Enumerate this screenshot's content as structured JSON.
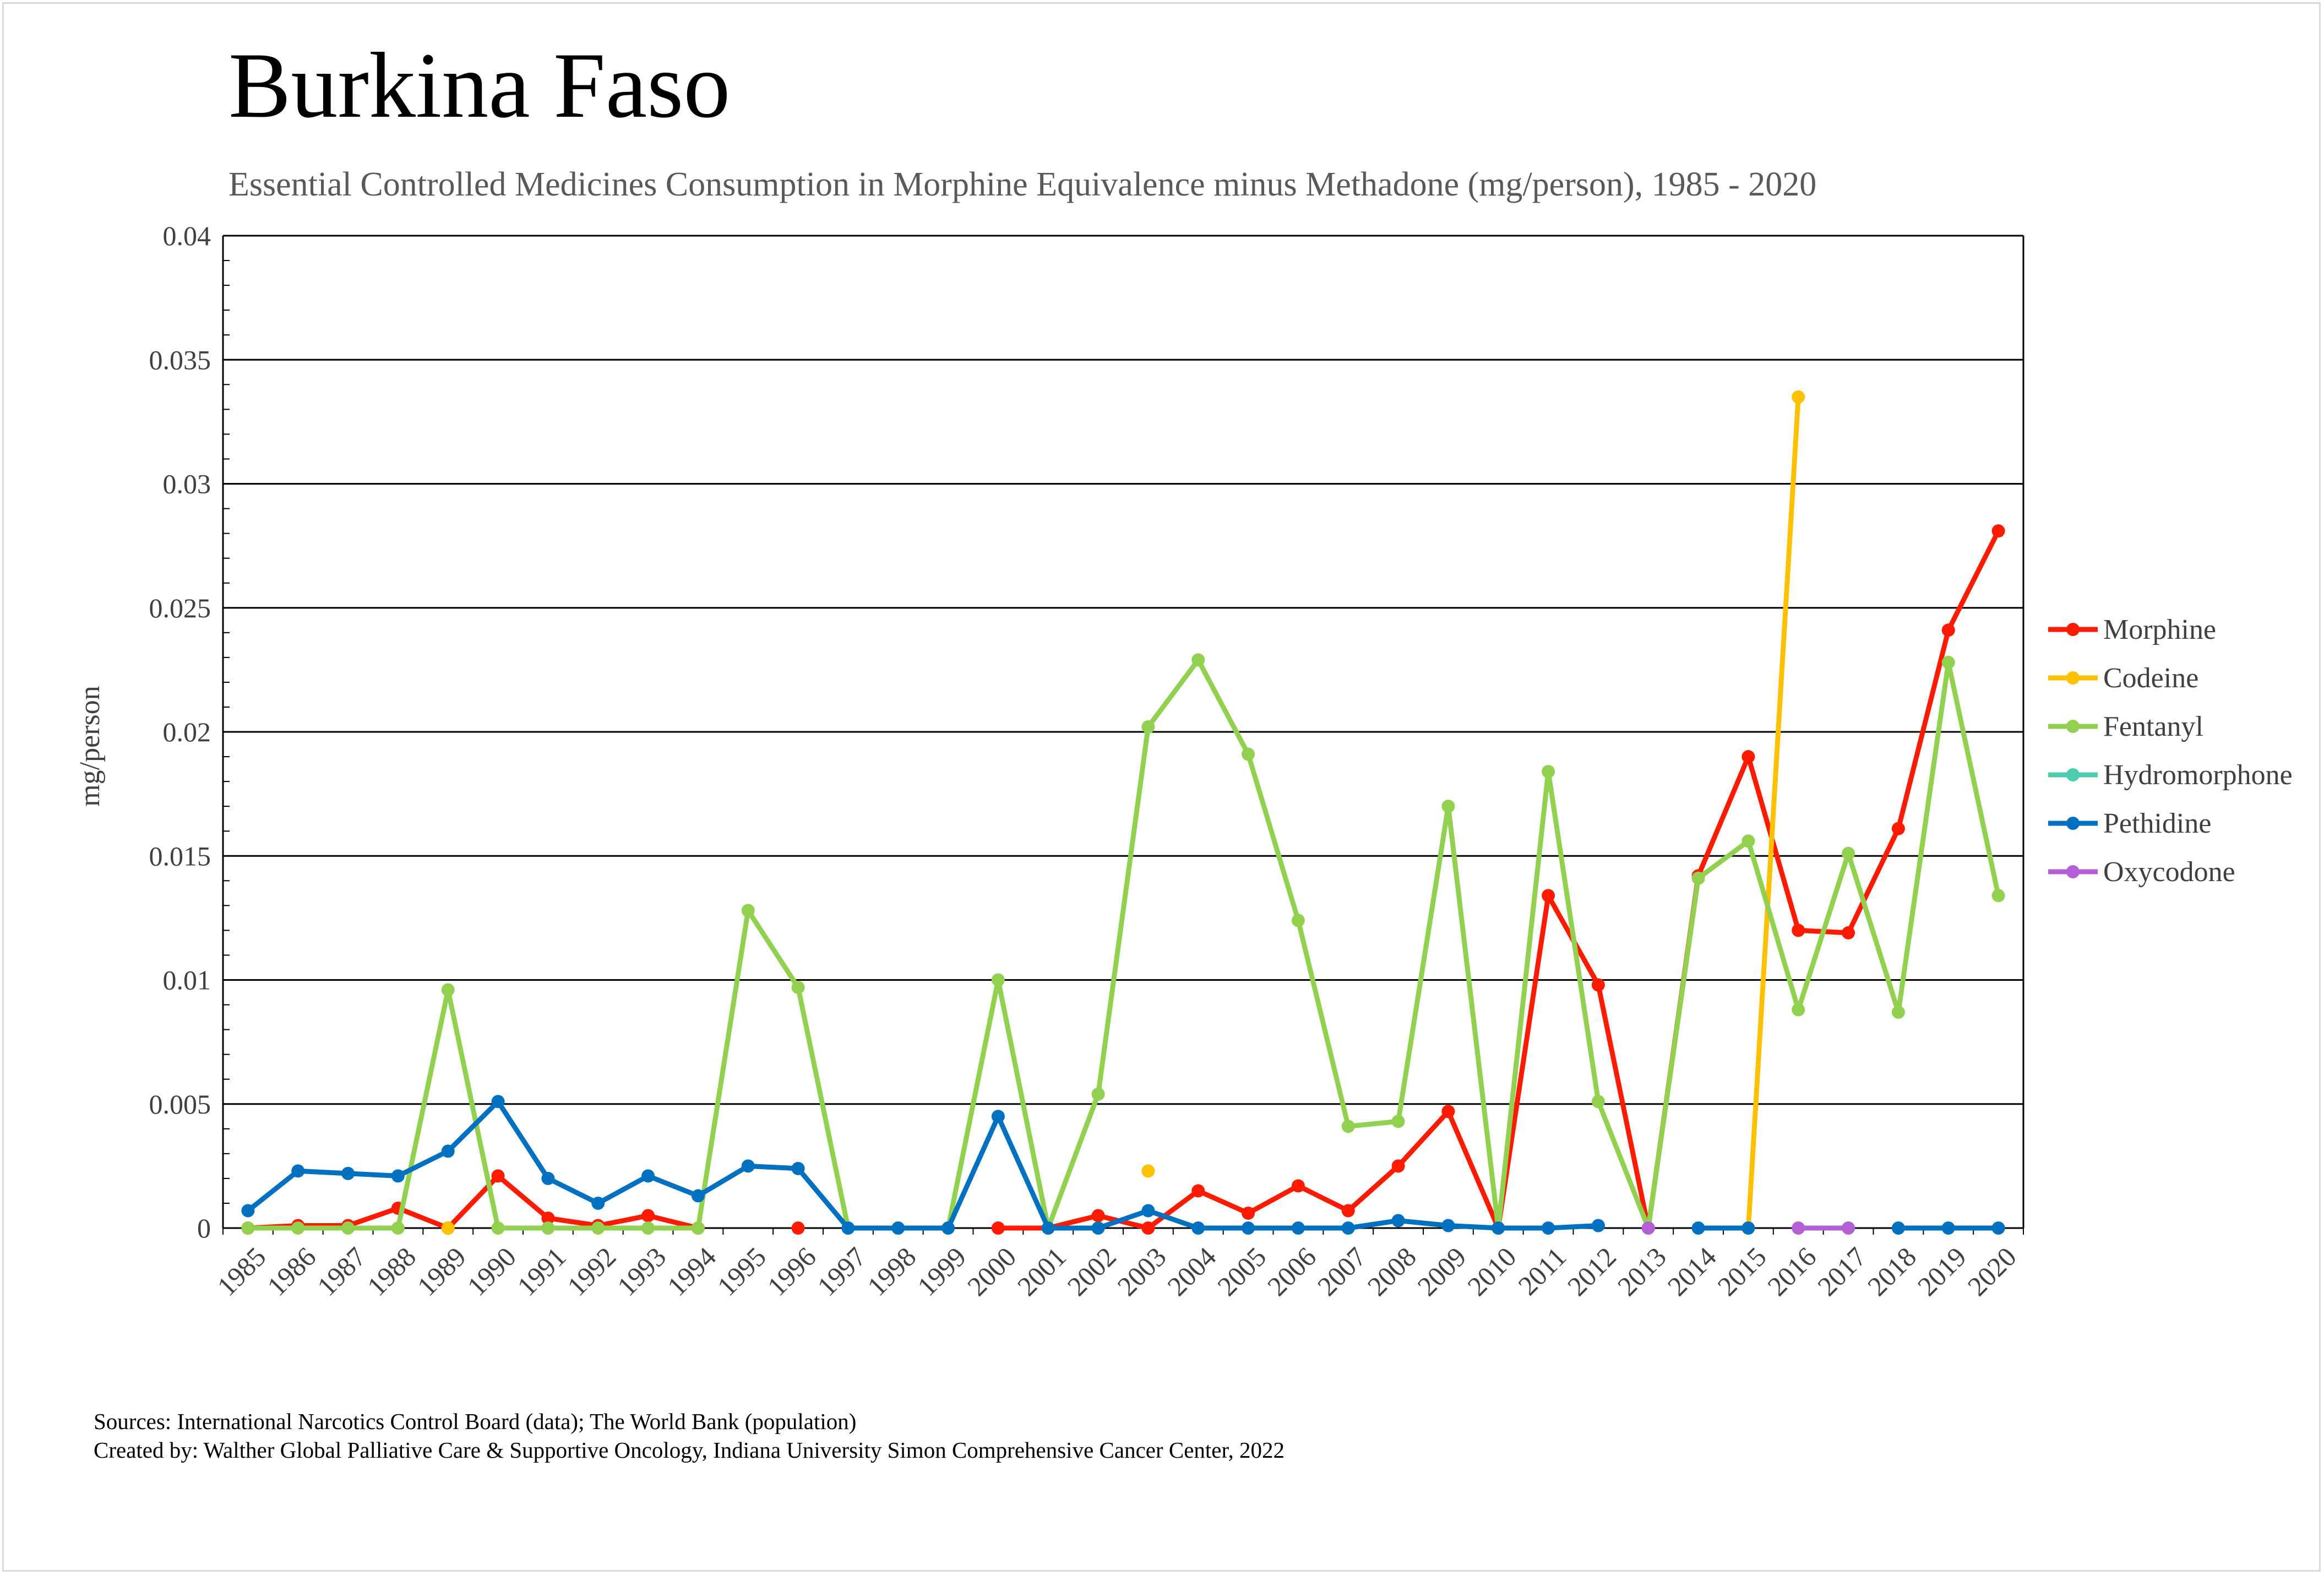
{
  "title": "Burkina Faso",
  "subtitle": "Essential Controlled Medicines Consumption in Morphine Equivalence minus Methadone (mg/person), 1985 - 2020",
  "sources": {
    "line1": "Sources: International Narcotics Control Board (data); The World Bank (population)",
    "line2": "Created by: Walther Global Palliative Care & Supportive Oncology, Indiana University Simon Comprehensive Cancer Center, 2022"
  },
  "chart_data": {
    "type": "line",
    "ylabel": "mg/person",
    "xlabel": "",
    "ylim": [
      0,
      0.04
    ],
    "y_ticks": [
      "0",
      "0.005",
      "0.01",
      "0.015",
      "0.02",
      "0.025",
      "0.03",
      "0.035",
      "0.04"
    ],
    "y_tick_values": [
      0,
      0.005,
      0.01,
      0.015,
      0.02,
      0.025,
      0.03,
      0.035,
      0.04
    ],
    "grid": true,
    "legend_position": "right",
    "categories": [
      "1985",
      "1986",
      "1987",
      "1988",
      "1989",
      "1990",
      "1991",
      "1992",
      "1993",
      "1994",
      "1995",
      "1996",
      "1997",
      "1998",
      "1999",
      "2000",
      "2001",
      "2002",
      "2003",
      "2004",
      "2005",
      "2006",
      "2007",
      "2008",
      "2009",
      "2010",
      "2011",
      "2012",
      "2013",
      "2014",
      "2015",
      "2016",
      "2017",
      "2018",
      "2019",
      "2020"
    ],
    "series": [
      {
        "name": "Morphine",
        "color": "#ff1a00",
        "values": [
          0,
          0.0001,
          0.0001,
          0.0008,
          0,
          0.0021,
          0.0004,
          0.0001,
          0.0005,
          0,
          null,
          0,
          null,
          null,
          null,
          0,
          0,
          0.0005,
          0,
          0.0015,
          0.0006,
          0.0017,
          0.0007,
          0.0025,
          0.0047,
          0,
          0.0134,
          0.0098,
          0,
          0.0142,
          0.019,
          0.012,
          0.0119,
          0.0161,
          0.0241,
          0.0281
        ]
      },
      {
        "name": "Codeine",
        "color": "#ffc000",
        "values": [
          null,
          null,
          null,
          null,
          0,
          null,
          null,
          null,
          null,
          null,
          null,
          null,
          null,
          null,
          null,
          null,
          null,
          null,
          0.0023,
          null,
          null,
          null,
          null,
          null,
          null,
          null,
          null,
          null,
          null,
          null,
          0,
          0.0335,
          null,
          null,
          null,
          null
        ]
      },
      {
        "name": "Fentanyl",
        "color": "#92d050",
        "values": [
          0,
          0,
          0,
          0,
          0.0096,
          0,
          0,
          0,
          0,
          0,
          0.0128,
          0.0097,
          0,
          0,
          0,
          0.01,
          0,
          0.0054,
          0.0202,
          0.0229,
          0.0191,
          0.0124,
          0.0041,
          0.0043,
          0.017,
          0,
          0.0184,
          0.0051,
          0,
          0.0141,
          0.0156,
          0.0088,
          0.0151,
          0.0087,
          0.0228,
          0.0134
        ]
      },
      {
        "name": "Hydromorphone",
        "color": "#4ecdac",
        "values": [
          null,
          null,
          null,
          null,
          null,
          null,
          null,
          null,
          null,
          null,
          null,
          null,
          null,
          null,
          null,
          null,
          null,
          null,
          null,
          null,
          null,
          null,
          null,
          null,
          null,
          null,
          null,
          null,
          null,
          null,
          null,
          null,
          null,
          null,
          null,
          null
        ]
      },
      {
        "name": "Pethidine",
        "color": "#0070c0",
        "values": [
          0.0007,
          0.0023,
          0.0022,
          0.0021,
          0.0031,
          0.0051,
          0.002,
          0.001,
          0.0021,
          0.0013,
          0.0025,
          0.0024,
          0,
          0,
          0,
          0.0045,
          0,
          0,
          0.0007,
          0,
          0,
          0,
          0,
          0.0003,
          0.0001,
          0,
          0,
          0.0001,
          null,
          0,
          0,
          null,
          null,
          0,
          0,
          0
        ]
      },
      {
        "name": "Oxycodone",
        "color": "#b45fd6",
        "values": [
          null,
          null,
          null,
          null,
          null,
          null,
          null,
          null,
          null,
          null,
          null,
          null,
          null,
          null,
          null,
          null,
          null,
          null,
          null,
          null,
          null,
          null,
          null,
          null,
          null,
          null,
          null,
          null,
          0,
          null,
          null,
          0,
          0,
          null,
          null,
          null
        ]
      }
    ]
  }
}
